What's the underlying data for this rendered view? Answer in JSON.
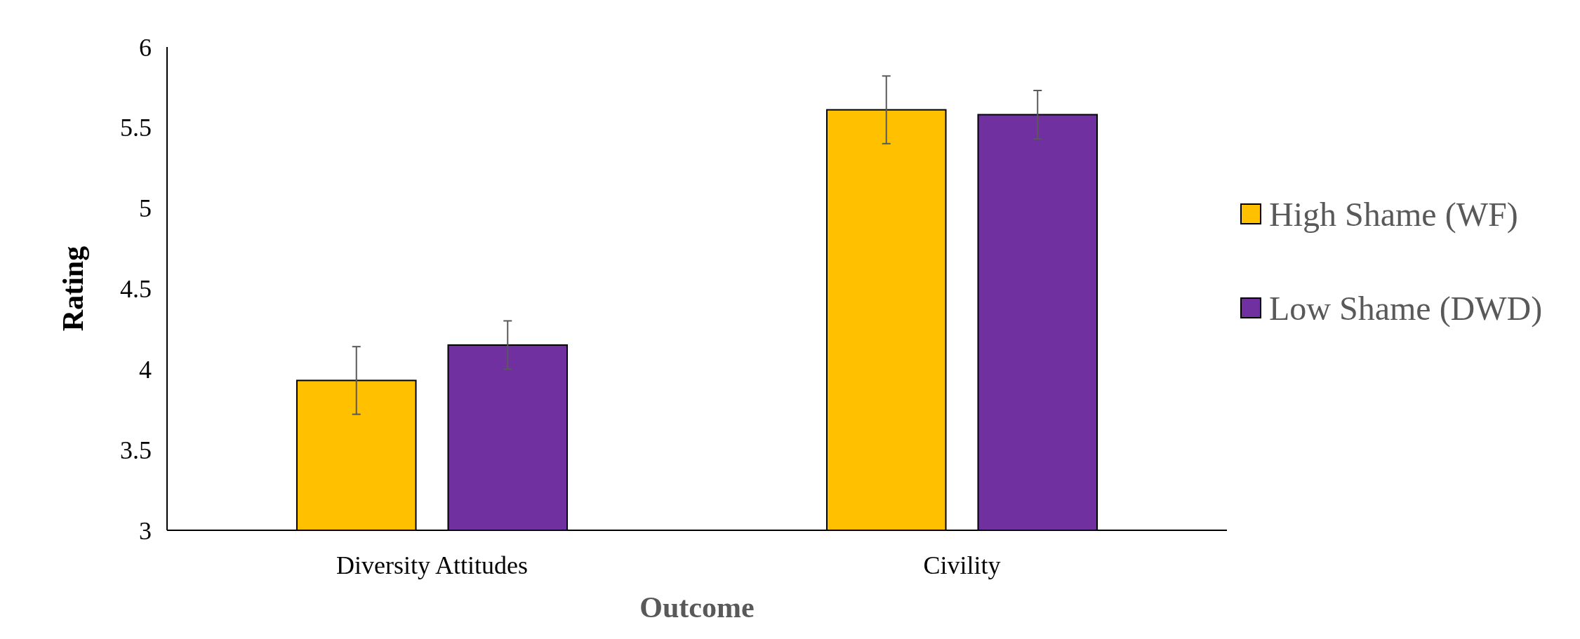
{
  "chart_data": {
    "type": "bar",
    "xlabel": "Outcome",
    "ylabel": "Rating",
    "categories": [
      "Diversity Attitudes",
      "Civility"
    ],
    "series": [
      {
        "name": "High Shame (WF)",
        "color": "#ffc000",
        "values": [
          3.93,
          5.61
        ],
        "errors": [
          0.21,
          0.21
        ]
      },
      {
        "name": "Low Shame (DWD)",
        "color": "#7030a0",
        "values": [
          4.15,
          5.58
        ],
        "errors": [
          0.15,
          0.15
        ]
      }
    ],
    "ylim": [
      3,
      6
    ],
    "yticks": [
      3,
      3.5,
      4,
      4.5,
      5,
      5.5,
      6
    ],
    "grid": false,
    "legend": "right"
  }
}
